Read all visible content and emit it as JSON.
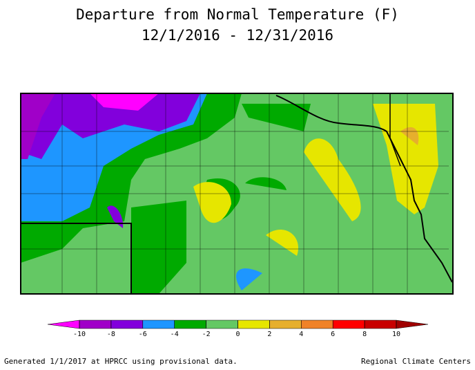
{
  "title": [
    "Departure from Normal Temperature (F)",
    "12/1/2016 - 12/31/2016"
  ],
  "legend": {
    "colors": [
      "#ff00ff",
      "#a000c8",
      "#8200dc",
      "#1e96ff",
      "#00aa00",
      "#64c864",
      "#e6e600",
      "#e6af2d",
      "#f08228",
      "#ff0000",
      "#c80000",
      "#a00000"
    ],
    "ticks": [
      -10,
      -8,
      -6,
      -4,
      -2,
      0,
      2,
      4,
      6,
      8,
      10
    ]
  },
  "footer": {
    "left": "Generated 1/1/2017 at HPRCC using provisional data.",
    "right": "Regional Climate Centers"
  }
}
